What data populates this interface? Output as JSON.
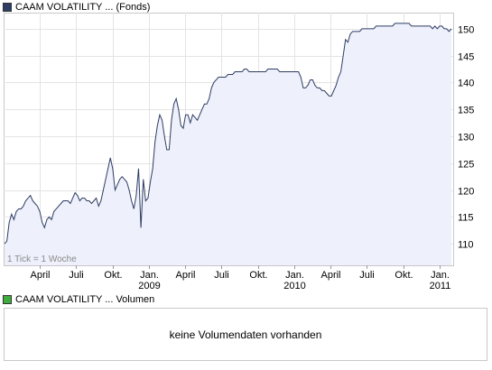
{
  "legend": {
    "price_label": "CAAM VOLATILITY ... (Fonds)",
    "price_color": "#2e3d63",
    "volume_label": "CAAM VOLATILITY ... Volumen",
    "volume_color": "#3dad3d"
  },
  "chart_data": {
    "type": "area",
    "series": [
      {
        "values": [
          110,
          110.5,
          114,
          115.5,
          114.5,
          116,
          116.5,
          116.5,
          117,
          118,
          118.5,
          119,
          118,
          117.5,
          117,
          116,
          114,
          113,
          114.5,
          115,
          114.5,
          116,
          116.5,
          117,
          117.5,
          118,
          118,
          118,
          117.5,
          118.5,
          119.5,
          119,
          118,
          118.5,
          118.5,
          118,
          118,
          117.5,
          118,
          118.5,
          117,
          118,
          120,
          122,
          124,
          126,
          124,
          120,
          121,
          122,
          122.5,
          122,
          121.5,
          120,
          118,
          116.5,
          119,
          124,
          113,
          122,
          118,
          118.5,
          121.5,
          124,
          129,
          132,
          134,
          133,
          130,
          127.5,
          127.5,
          133,
          136,
          137,
          135,
          132,
          131.5,
          134,
          134,
          132.5,
          134,
          133.5,
          133,
          134,
          135,
          136,
          136,
          137,
          139,
          140,
          140.5,
          141,
          141,
          141,
          141,
          141.5,
          141.5,
          141.5,
          142,
          142,
          142,
          142,
          142.5,
          142.5,
          142,
          142,
          142,
          142,
          142,
          142,
          142,
          142,
          142.5,
          142.5,
          142.5,
          142.5,
          142.5,
          142,
          142,
          142,
          142,
          142,
          142,
          142,
          142,
          142,
          141,
          139,
          139,
          139.5,
          140.5,
          140.5,
          139.5,
          139,
          139,
          138.5,
          138.5,
          138,
          137.5,
          137.5,
          138.5,
          139.5,
          141,
          142,
          145,
          148,
          147.5,
          149,
          149.5,
          149.5,
          149.5,
          149.5,
          150,
          150,
          150,
          150,
          150,
          150,
          150.5,
          150.5,
          150.5,
          150.5,
          150.5,
          150.5,
          150.5,
          150.5,
          151,
          151,
          151,
          151,
          151,
          151,
          151,
          150.5,
          150.5,
          150.5,
          150.5,
          150.5,
          150.5,
          150.5,
          150.5,
          150.5,
          150,
          150.5,
          150,
          150.5,
          150.5,
          150,
          150,
          149.5,
          150
        ]
      }
    ],
    "x_ticks": [
      {
        "label": "April",
        "year": ""
      },
      {
        "label": "Juli",
        "year": ""
      },
      {
        "label": "Okt.",
        "year": ""
      },
      {
        "label": "Jan.",
        "year": "2009"
      },
      {
        "label": "April",
        "year": ""
      },
      {
        "label": "Juli",
        "year": ""
      },
      {
        "label": "Okt.",
        "year": ""
      },
      {
        "label": "Jan.",
        "year": "2010"
      },
      {
        "label": "April",
        "year": ""
      },
      {
        "label": "Juli",
        "year": ""
      },
      {
        "label": "Okt.",
        "year": ""
      },
      {
        "label": "Jan.",
        "year": "2011"
      }
    ],
    "y_ticks": [
      110,
      115,
      120,
      125,
      130,
      135,
      140,
      145,
      150
    ],
    "ylim": [
      106,
      153
    ],
    "y_axis_side": "right",
    "grid": true,
    "tick_note": "1 Tick = 1 Woche",
    "line_color": "#2e3d63",
    "fill_color": "#eef0fb"
  },
  "volume": {
    "empty_text": "keine Volumendaten vorhanden"
  }
}
